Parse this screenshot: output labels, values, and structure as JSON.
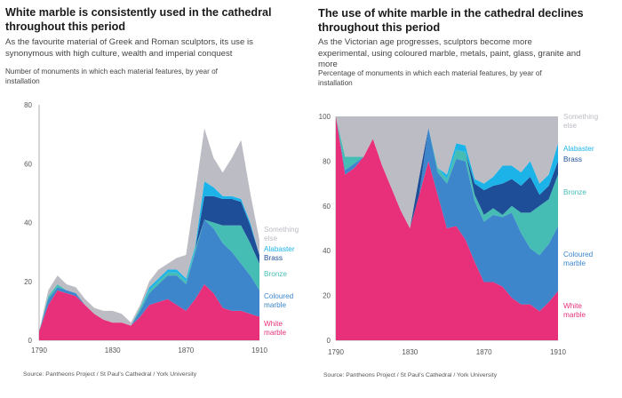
{
  "left": {
    "title": "White marble is consistently used in the cathedral throughout this period",
    "subtitle": "As the favourite material of Greek and Roman sculptors, its use is synonymous with high culture, wealth and imperial conquest",
    "axis_title": "Number of monuments in which each material features, by year of installation",
    "source": "Source: Pantheons Project / St Paul's Cathedral / York University"
  },
  "right": {
    "title": "The use of white marble in the cathedral declines throughout this period",
    "subtitle": "As the Victorian age progresses, sculptors become more experimental, using coloured marble, metals, paint, glass, granite and more",
    "axis_title": "Percentage of monuments in which each material features, by year of installation",
    "source": "Source: Pantheons Project / St Paul's Cathedral / York University"
  },
  "colors": {
    "white_marble": "#e8307a",
    "coloured_marble": "#3d86cc",
    "bronze": "#45bcb4",
    "brass": "#1e4e98",
    "alabaster": "#1cb4e8",
    "something_else": "#bcbcc4"
  },
  "chart_data": [
    {
      "type": "area",
      "stacked": true,
      "title": "White marble is consistently used in the cathedral throughout this period",
      "ylabel": "Number of monuments in which each material features, by year of installation",
      "x": [
        1790,
        1795,
        1800,
        1805,
        1810,
        1815,
        1820,
        1825,
        1830,
        1835,
        1840,
        1845,
        1850,
        1855,
        1860,
        1865,
        1870,
        1875,
        1880,
        1885,
        1890,
        1895,
        1900,
        1905,
        1910
      ],
      "xticks": [
        1790,
        1830,
        1870,
        1910
      ],
      "yticks": [
        0,
        20,
        40,
        60,
        80
      ],
      "ylim": [
        0,
        80
      ],
      "xlim": [
        1790,
        1910
      ],
      "series": [
        {
          "name": "White marble",
          "label_lines": [
            "White",
            "marble"
          ],
          "color_key": "white_marble",
          "values": [
            3,
            12,
            17,
            16,
            15,
            12,
            9,
            7,
            6,
            6,
            5,
            8,
            12,
            13,
            14,
            12,
            10,
            14,
            19,
            16,
            11,
            10,
            10,
            9,
            8
          ]
        },
        {
          "name": "Coloured marble",
          "label_lines": [
            "Coloured",
            "marble"
          ],
          "color_key": "coloured_marble",
          "values": [
            0,
            2,
            1,
            1,
            1,
            0,
            0,
            0,
            0,
            0,
            0,
            2,
            4,
            6,
            8,
            10,
            9,
            16,
            22,
            22,
            22,
            20,
            16,
            13,
            9
          ]
        },
        {
          "name": "Bronze",
          "label_lines": [
            "Bronze"
          ],
          "color_key": "bronze",
          "values": [
            0,
            1,
            1,
            0,
            0,
            0,
            0,
            0,
            0,
            0,
            0,
            1,
            1,
            1,
            1,
            1,
            1,
            1,
            0,
            2,
            6,
            9,
            13,
            11,
            9
          ]
        },
        {
          "name": "Brass",
          "label_lines": [
            "Brass"
          ],
          "color_key": "brass",
          "values": [
            0,
            0,
            0,
            0,
            0,
            0,
            0,
            0,
            0,
            0,
            0,
            0,
            0,
            0,
            0,
            0,
            0,
            0,
            8,
            9,
            9,
            9,
            8,
            6,
            3
          ]
        },
        {
          "name": "Alabaster",
          "label_lines": [
            "Alabaster"
          ],
          "color_key": "alabaster",
          "values": [
            0,
            0,
            0,
            0,
            0,
            0,
            0,
            0,
            0,
            0,
            0,
            0,
            1,
            1,
            1,
            1,
            1,
            1,
            5,
            3,
            1,
            1,
            1,
            1,
            0
          ]
        },
        {
          "name": "Something else",
          "label_lines": [
            "Something",
            "else"
          ],
          "color_key": "something_else",
          "values": [
            0,
            2,
            3,
            2,
            2,
            2,
            2,
            3,
            4,
            3,
            1,
            1,
            2,
            3,
            2,
            4,
            8,
            18,
            18,
            10,
            8,
            13,
            20,
            10,
            5
          ]
        }
      ]
    },
    {
      "type": "area",
      "stacked": true,
      "percent": true,
      "title": "The use of white marble in the cathedral declines throughout this period",
      "ylabel": "Percentage of monuments in which each material features, by year of installation",
      "x": [
        1790,
        1795,
        1800,
        1805,
        1810,
        1815,
        1820,
        1825,
        1830,
        1835,
        1840,
        1845,
        1850,
        1855,
        1860,
        1865,
        1870,
        1875,
        1880,
        1885,
        1890,
        1895,
        1900,
        1905,
        1910
      ],
      "xticks": [
        1790,
        1830,
        1870,
        1910
      ],
      "yticks": [
        0,
        20,
        40,
        60,
        80,
        100
      ],
      "ylim": [
        0,
        100
      ],
      "xlim": [
        1790,
        1910
      ],
      "series": [
        {
          "name": "White marble",
          "label_lines": [
            "White",
            "marble"
          ],
          "color_key": "white_marble",
          "values": [
            100,
            74,
            77,
            82,
            90,
            78,
            68,
            58,
            50,
            65,
            80,
            65,
            50,
            51,
            45,
            35,
            26,
            26,
            24,
            19,
            16,
            16,
            13,
            17,
            22
          ]
        },
        {
          "name": "Coloured marble",
          "label_lines": [
            "Coloured",
            "marble"
          ],
          "color_key": "coloured_marble",
          "values": [
            0,
            2,
            2,
            0,
            0,
            0,
            0,
            0,
            0,
            0,
            15,
            10,
            20,
            30,
            35,
            27,
            27,
            30,
            31,
            38,
            32,
            25,
            25,
            26,
            29
          ]
        },
        {
          "name": "Bronze",
          "label_lines": [
            "Bronze"
          ],
          "color_key": "bronze",
          "values": [
            0,
            6,
            3,
            0,
            0,
            0,
            0,
            0,
            0,
            0,
            0,
            2,
            2,
            4,
            4,
            3,
            3,
            3,
            1,
            3,
            9,
            16,
            22,
            20,
            23
          ]
        },
        {
          "name": "Brass",
          "label_lines": [
            "Brass"
          ],
          "color_key": "brass",
          "values": [
            0,
            0,
            0,
            0,
            0,
            0,
            0,
            0,
            0,
            8,
            0,
            0,
            0,
            0,
            0,
            5,
            11,
            10,
            14,
            12,
            12,
            16,
            5,
            6,
            6
          ]
        },
        {
          "name": "Alabaster",
          "label_lines": [
            "Alabaster"
          ],
          "color_key": "alabaster",
          "values": [
            0,
            0,
            0,
            0,
            0,
            0,
            0,
            0,
            0,
            0,
            0,
            0,
            2,
            3,
            3,
            2,
            3,
            4,
            8,
            6,
            6,
            7,
            5,
            5,
            8
          ]
        },
        {
          "name": "Something else",
          "label_lines": [
            "Something",
            "else"
          ],
          "color_key": "something_else",
          "values": [
            0,
            18,
            18,
            18,
            10,
            22,
            32,
            42,
            50,
            27,
            5,
            23,
            26,
            12,
            13,
            28,
            30,
            27,
            22,
            22,
            25,
            20,
            30,
            26,
            12
          ]
        }
      ]
    }
  ]
}
